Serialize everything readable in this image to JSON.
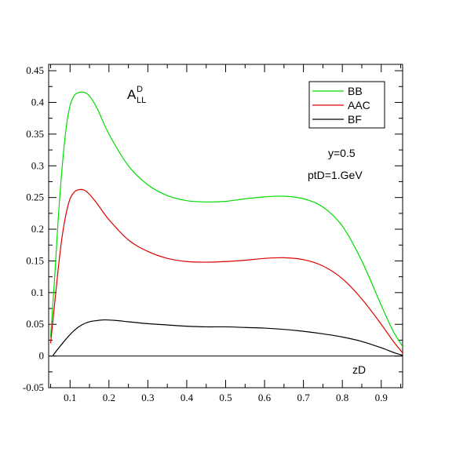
{
  "chart_data": {
    "type": "line",
    "title_main": "A",
    "title_sup": "D",
    "title_sub": "LL",
    "xlabel": "zD",
    "ylabel": "",
    "xlim": [
      0.045,
      0.955
    ],
    "ylim": [
      -0.05,
      0.46
    ],
    "grid": false,
    "legend_position": "top-right",
    "x_ticks": [
      0.1,
      0.2,
      0.3,
      0.4,
      0.5,
      0.6,
      0.7,
      0.8,
      0.9
    ],
    "x_tick_labels": [
      "0.1",
      "0.2",
      "0.3",
      "0.4",
      "0.5",
      "0.6",
      "0.7",
      "0.8",
      "0.9"
    ],
    "y_ticks": [
      -0.05,
      0,
      0.05,
      0.1,
      0.15,
      0.2,
      0.25,
      0.3,
      0.35,
      0.4,
      0.45
    ],
    "y_tick_labels": [
      "-0.05",
      "0",
      "0.05",
      "0.1",
      "0.15",
      "0.2",
      "0.25",
      "0.3",
      "0.35",
      "0.4",
      "0.45"
    ],
    "annotations": [
      "y=0.5",
      "ptD=1.GeV"
    ],
    "series": [
      {
        "name": "BB",
        "color": "#00dd00",
        "x": [
          0.05,
          0.06,
          0.07,
          0.08,
          0.09,
          0.1,
          0.11,
          0.12,
          0.135,
          0.15,
          0.17,
          0.2,
          0.25,
          0.3,
          0.35,
          0.4,
          0.45,
          0.5,
          0.55,
          0.6,
          0.65,
          0.7,
          0.75,
          0.8,
          0.85,
          0.9,
          0.93,
          0.955
        ],
        "y": [
          0.03,
          0.12,
          0.22,
          0.3,
          0.36,
          0.395,
          0.41,
          0.415,
          0.416,
          0.41,
          0.39,
          0.35,
          0.3,
          0.27,
          0.253,
          0.245,
          0.243,
          0.244,
          0.248,
          0.251,
          0.252,
          0.248,
          0.235,
          0.205,
          0.15,
          0.08,
          0.04,
          0.015
        ]
      },
      {
        "name": "AAC",
        "color": "#dd0000",
        "x": [
          0.05,
          0.06,
          0.07,
          0.08,
          0.09,
          0.1,
          0.11,
          0.12,
          0.135,
          0.15,
          0.17,
          0.2,
          0.25,
          0.3,
          0.35,
          0.4,
          0.45,
          0.5,
          0.55,
          0.6,
          0.65,
          0.7,
          0.75,
          0.8,
          0.85,
          0.9,
          0.93,
          0.955
        ],
        "y": [
          0.02,
          0.08,
          0.14,
          0.19,
          0.225,
          0.248,
          0.258,
          0.262,
          0.262,
          0.255,
          0.24,
          0.215,
          0.183,
          0.165,
          0.154,
          0.149,
          0.148,
          0.149,
          0.151,
          0.154,
          0.155,
          0.152,
          0.142,
          0.122,
          0.09,
          0.05,
          0.024,
          0.005
        ]
      },
      {
        "name": "BF",
        "color": "#000000",
        "x": [
          0.055,
          0.07,
          0.09,
          0.11,
          0.13,
          0.15,
          0.17,
          0.19,
          0.22,
          0.25,
          0.3,
          0.35,
          0.4,
          0.45,
          0.5,
          0.55,
          0.6,
          0.65,
          0.7,
          0.75,
          0.8,
          0.85,
          0.9,
          0.93,
          0.955
        ],
        "y": [
          0.0,
          0.012,
          0.027,
          0.04,
          0.049,
          0.054,
          0.056,
          0.057,
          0.056,
          0.054,
          0.051,
          0.049,
          0.047,
          0.046,
          0.046,
          0.045,
          0.044,
          0.042,
          0.039,
          0.035,
          0.03,
          0.023,
          0.013,
          0.006,
          0.001
        ]
      }
    ]
  }
}
